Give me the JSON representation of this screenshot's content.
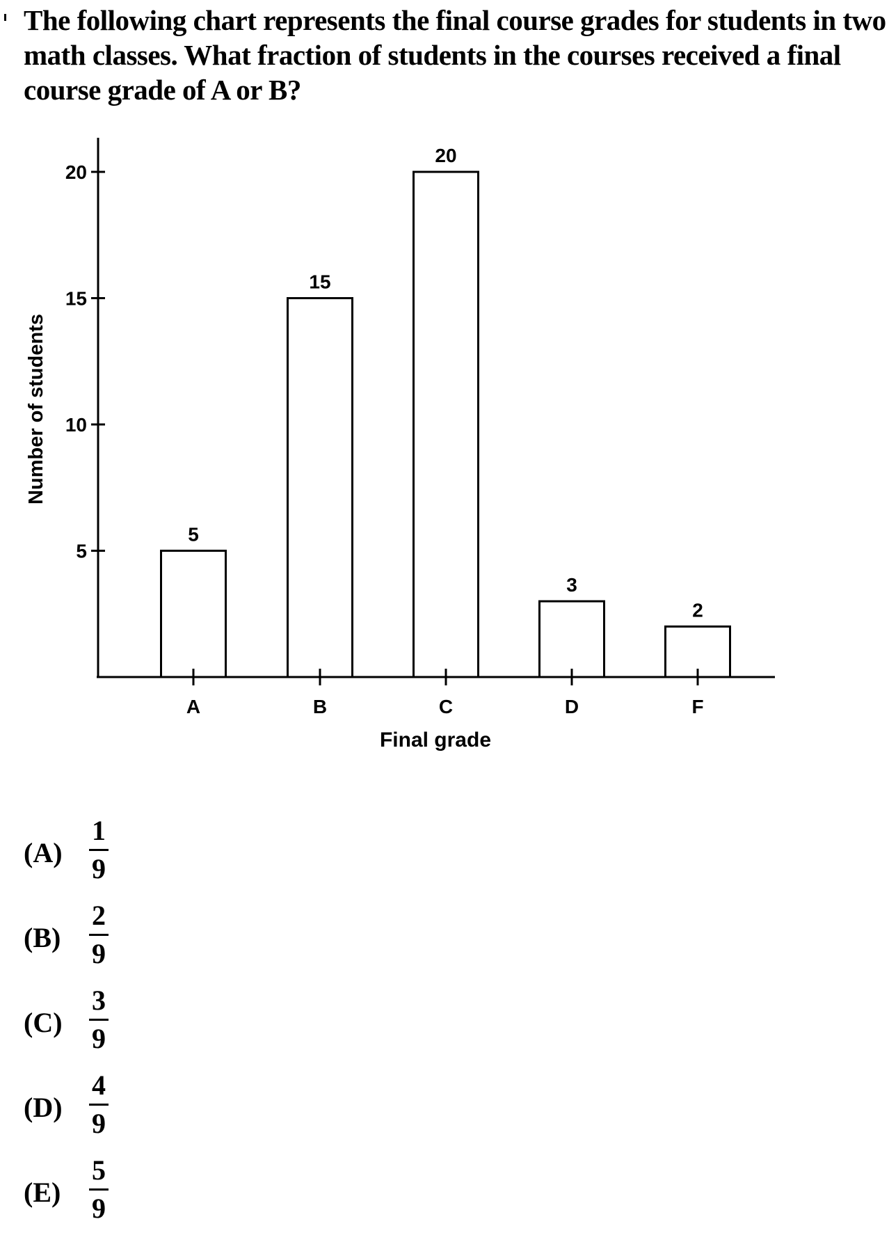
{
  "question": "The following chart represents the final course grades for students in two math classes. What fraction of students in the courses received a final course grade of A or B?",
  "chart_data": {
    "type": "bar",
    "categories": [
      "A",
      "B",
      "C",
      "D",
      "F"
    ],
    "values": [
      5,
      15,
      20,
      3,
      2
    ],
    "data_labels": [
      "5",
      "15",
      "20",
      "3",
      "2"
    ],
    "xlabel": "Final grade",
    "ylabel": "Number of students",
    "yticks": [
      5,
      10,
      15,
      20
    ],
    "ylim": [
      0,
      21.5
    ],
    "grid": false,
    "bar_fill": "#ffffff",
    "bar_stroke": "#000000"
  },
  "options": [
    {
      "label": "(A)",
      "numerator": "1",
      "denominator": "9"
    },
    {
      "label": "(B)",
      "numerator": "2",
      "denominator": "9"
    },
    {
      "label": "(C)",
      "numerator": "3",
      "denominator": "9"
    },
    {
      "label": "(D)",
      "numerator": "4",
      "denominator": "9"
    },
    {
      "label": "(E)",
      "numerator": "5",
      "denominator": "9"
    }
  ]
}
